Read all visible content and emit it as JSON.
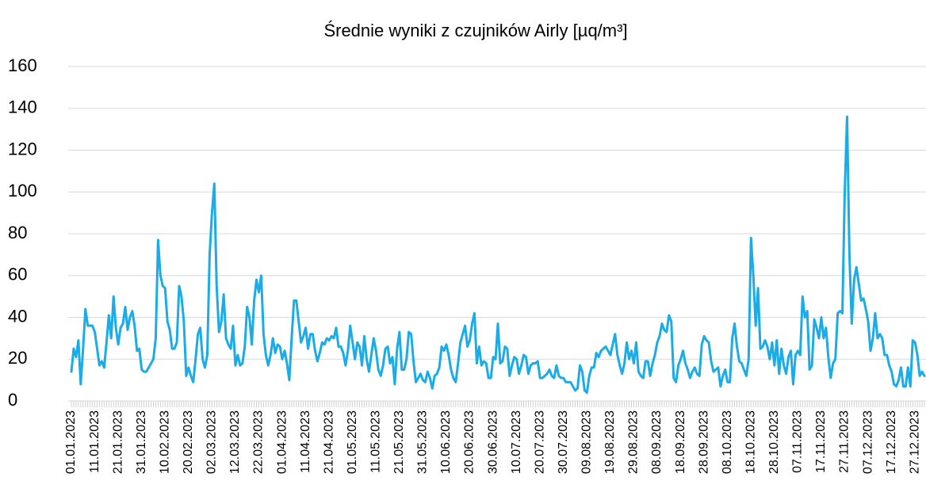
{
  "chart_data": {
    "type": "line",
    "title": "Średnie wyniki z czujników Airly [µq/m³]",
    "categories": [
      "01.01.2023",
      null,
      null,
      null,
      null,
      null,
      null,
      null,
      null,
      null,
      "11.01.2023",
      null,
      null,
      null,
      null,
      null,
      null,
      null,
      null,
      null,
      "21.01.2023",
      null,
      null,
      null,
      null,
      null,
      null,
      null,
      null,
      null,
      "31.01.2023",
      null,
      null,
      null,
      null,
      null,
      null,
      null,
      null,
      null,
      "10.02.2023",
      null,
      null,
      null,
      null,
      null,
      null,
      null,
      null,
      null,
      "20.02.2023",
      null,
      null,
      null,
      null,
      null,
      null,
      null,
      null,
      null,
      "02.03.2023",
      null,
      null,
      null,
      null,
      null,
      null,
      null,
      null,
      null,
      "12.03.2023",
      null,
      null,
      null,
      null,
      null,
      null,
      null,
      null,
      null,
      "22.03.2023",
      null,
      null,
      null,
      null,
      null,
      null,
      null,
      null,
      null,
      "01.04.2023",
      null,
      null,
      null,
      null,
      null,
      null,
      null,
      null,
      null,
      "11.04.2023",
      null,
      null,
      null,
      null,
      null,
      null,
      null,
      null,
      null,
      "21.04.2023",
      null,
      null,
      null,
      null,
      null,
      null,
      null,
      null,
      null,
      "01.05.2023",
      null,
      null,
      null,
      null,
      null,
      null,
      null,
      null,
      null,
      "11.05.2023",
      null,
      null,
      null,
      null,
      null,
      null,
      null,
      null,
      null,
      "21.05.2023",
      null,
      null,
      null,
      null,
      null,
      null,
      null,
      null,
      null,
      "31.05.2023",
      null,
      null,
      null,
      null,
      null,
      null,
      null,
      null,
      null,
      "10.06.2023",
      null,
      null,
      null,
      null,
      null,
      null,
      null,
      null,
      null,
      "20.06.2023",
      null,
      null,
      null,
      null,
      null,
      null,
      null,
      null,
      null,
      "30.06.2023",
      null,
      null,
      null,
      null,
      null,
      null,
      null,
      null,
      null,
      "10.07.2023",
      null,
      null,
      null,
      null,
      null,
      null,
      null,
      null,
      null,
      "20.07.2023",
      null,
      null,
      null,
      null,
      null,
      null,
      null,
      null,
      null,
      "30.07.2023",
      null,
      null,
      null,
      null,
      null,
      null,
      null,
      null,
      null,
      "09.08.2023",
      null,
      null,
      null,
      null,
      null,
      null,
      null,
      null,
      null,
      "19.08.2023",
      null,
      null,
      null,
      null,
      null,
      null,
      null,
      null,
      null,
      "29.08.2023",
      null,
      null,
      null,
      null,
      null,
      null,
      null,
      null,
      null,
      "08.09.2023",
      null,
      null,
      null,
      null,
      null,
      null,
      null,
      null,
      null,
      "18.09.2023",
      null,
      null,
      null,
      null,
      null,
      null,
      null,
      null,
      null,
      "28.09.2023",
      null,
      null,
      null,
      null,
      null,
      null,
      null,
      null,
      null,
      "08.10.2023",
      null,
      null,
      null,
      null,
      null,
      null,
      null,
      null,
      null,
      "18.10.2023",
      null,
      null,
      null,
      null,
      null,
      null,
      null,
      null,
      null,
      "28.10.2023",
      null,
      null,
      null,
      null,
      null,
      null,
      null,
      null,
      null,
      "07.11.2023",
      null,
      null,
      null,
      null,
      null,
      null,
      null,
      null,
      null,
      "17.11.2023",
      null,
      null,
      null,
      null,
      null,
      null,
      null,
      null,
      null,
      "27.11.2023",
      null,
      null,
      null,
      null,
      null,
      null,
      null,
      null,
      null,
      "07.12.2023",
      null,
      null,
      null,
      null,
      null,
      null,
      null,
      null,
      null,
      "17.12.2023",
      null,
      null,
      null,
      null,
      null,
      null,
      null,
      null,
      null,
      "27.12.2023",
      null,
      null,
      null,
      null
    ],
    "values": [
      14,
      25,
      21,
      29,
      8,
      25,
      44,
      36,
      36,
      36,
      33,
      25,
      17,
      19,
      16,
      28,
      41,
      30,
      50,
      35,
      27,
      35,
      37,
      45,
      34,
      40,
      43,
      36,
      24,
      25,
      15,
      14,
      14,
      16,
      18,
      20,
      30,
      77,
      60,
      55,
      54,
      38,
      34,
      25,
      25,
      28,
      55,
      50,
      38,
      12,
      16,
      12,
      9,
      20,
      32,
      35,
      20,
      16,
      22,
      70,
      90,
      104,
      55,
      33,
      38,
      51,
      30,
      27,
      25,
      36,
      17,
      22,
      17,
      18,
      26,
      45,
      40,
      27,
      48,
      58,
      52,
      60,
      32,
      22,
      17,
      22,
      30,
      23,
      27,
      26,
      20,
      24,
      18,
      10,
      30,
      48,
      48,
      38,
      28,
      31,
      35,
      25,
      32,
      32,
      24,
      19,
      23,
      28,
      27,
      30,
      29,
      31,
      30,
      35,
      26,
      26,
      23,
      17,
      24,
      36,
      28,
      20,
      28,
      26,
      17,
      31,
      20,
      14,
      22,
      30,
      24,
      15,
      12,
      17,
      25,
      26,
      18,
      21,
      8,
      25,
      33,
      15,
      15,
      20,
      33,
      32,
      19,
      9,
      11,
      13,
      10,
      9,
      14,
      11,
      6,
      12,
      13,
      16,
      26,
      24,
      27,
      22,
      15,
      11,
      9,
      18,
      28,
      32,
      36,
      26,
      29,
      37,
      42,
      18,
      26,
      17,
      19,
      18,
      11,
      11,
      21,
      20,
      37,
      18,
      19,
      26,
      25,
      12,
      17,
      21,
      20,
      13,
      17,
      22,
      21,
      13,
      17,
      18,
      18,
      19,
      11,
      11,
      12,
      13,
      15,
      12,
      11,
      17,
      12,
      11,
      11,
      9,
      9,
      9,
      7,
      5,
      6,
      17,
      14,
      5,
      4,
      12,
      16,
      16,
      23,
      21,
      24,
      25,
      26,
      24,
      22,
      27,
      32,
      22,
      17,
      13,
      18,
      28,
      20,
      24,
      18,
      28,
      14,
      12,
      11,
      19,
      19,
      12,
      18,
      22,
      28,
      31,
      37,
      34,
      33,
      41,
      38,
      11,
      9,
      17,
      20,
      24,
      18,
      15,
      11,
      14,
      16,
      13,
      12,
      27,
      31,
      29,
      28,
      19,
      14,
      15,
      16,
      7,
      12,
      15,
      9,
      9,
      30,
      37,
      26,
      19,
      18,
      15,
      12,
      20,
      78,
      60,
      36,
      54,
      25,
      26,
      29,
      26,
      20,
      28,
      17,
      29,
      13,
      25,
      17,
      13,
      21,
      24,
      8,
      22,
      24,
      22,
      50,
      40,
      43,
      15,
      17,
      39,
      35,
      30,
      40,
      30,
      35,
      21,
      11,
      18,
      20,
      42,
      43,
      42,
      100,
      136,
      70,
      37,
      58,
      64,
      56,
      48,
      49,
      44,
      38,
      24,
      30,
      42,
      30,
      32,
      30,
      22,
      22,
      17,
      14,
      8,
      7,
      10,
      16,
      7,
      7,
      16,
      7,
      29,
      28,
      22,
      12,
      14,
      12
    ],
    "color": "#1aace6",
    "ylim": [
      0,
      160
    ],
    "yticks": [
      0,
      20,
      40,
      60,
      80,
      100,
      120,
      140,
      160
    ],
    "grid": true
  }
}
